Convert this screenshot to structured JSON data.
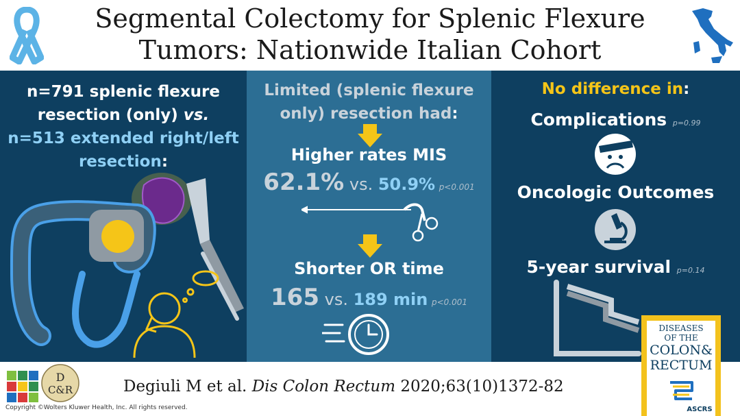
{
  "title": {
    "line1": "Segmental Colectomy for Splenic Flexure",
    "line2": "Tumors: Nationwide Italian Cohort"
  },
  "left": {
    "line1": "n=791 splenic flexure",
    "line2a": "resection (only) ",
    "line2b": "vs.",
    "line3": "n=513 extended right/left",
    "line4a": "resection",
    "line4b": ":"
  },
  "middle": {
    "heading_line1": "Limited (splenic flexure",
    "heading_line2a": "only) resection had",
    "heading_line2b": ":",
    "mis_label": "Higher rates MIS",
    "mis_value_a": "62.1%",
    "mis_vs": " vs. ",
    "mis_value_b": "50.9%",
    "mis_p": "p<0.001",
    "or_label": "Shorter OR time",
    "or_value_a": "165",
    "or_vs": " vs. ",
    "or_value_b": "189 min",
    "or_p": "p<0.001"
  },
  "right": {
    "heading_a": "No difference in",
    "heading_b": ":",
    "complications": "Complications",
    "complications_p": "p=0.99",
    "oncologic": "Oncologic Outcomes",
    "survival": "5-year survival",
    "survival_p": "p=0.14"
  },
  "footer": {
    "citation_a": "Degiuli M et al. ",
    "citation_journal": "Dis Colon Rectum",
    "citation_b": " 2020;63(10)1372-82",
    "copyright": "Copyright ©Wolters Kluwer Health, Inc. All rights reserved.",
    "logo_top": "D",
    "logo_bottom": "C&R",
    "cover_line1": "DISEASES",
    "cover_line2": "OF THE",
    "cover_line3": "COLON&",
    "cover_line4": "RECTUM",
    "cover_ascrs": "ASCRS"
  },
  "colors": {
    "background": "#0e3f60",
    "middle_panel": "#2c6e94",
    "accent_yellow": "#f5c518",
    "accent_blue": "#8fd0f5"
  }
}
